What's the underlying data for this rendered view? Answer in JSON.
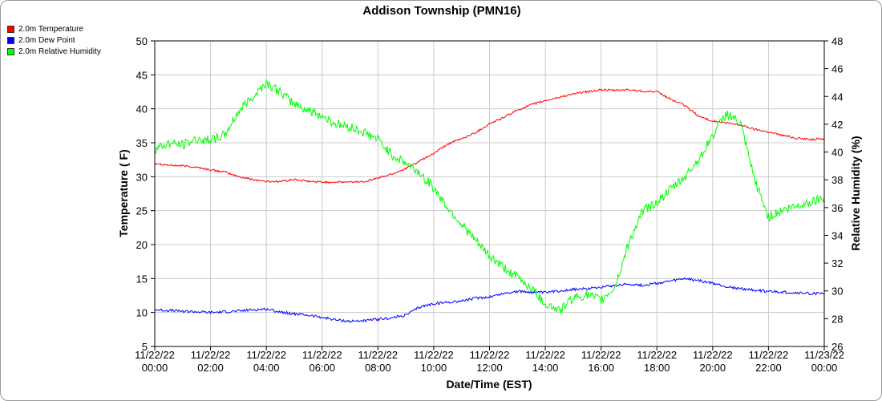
{
  "chart_data": {
    "type": "line",
    "title": "Addison Township (PMN16)",
    "xlabel": "Date/Time (EST)",
    "ylabel": "Temperature ( F)",
    "y2label": "Relative Humidity (%)",
    "ylim": [
      5,
      50
    ],
    "y2lim": [
      26,
      48
    ],
    "yticks": [
      "5",
      "10",
      "15",
      "20",
      "25",
      "30",
      "35",
      "40",
      "45",
      "50"
    ],
    "y2ticks": [
      "26",
      "28",
      "30",
      "32",
      "34",
      "36",
      "38",
      "40",
      "42",
      "44",
      "46",
      "48"
    ],
    "xtick_labels": [
      {
        "date": "11/22/22",
        "time": "00:00"
      },
      {
        "date": "11/22/22",
        "time": "02:00"
      },
      {
        "date": "11/22/22",
        "time": "04:00"
      },
      {
        "date": "11/22/22",
        "time": "06:00"
      },
      {
        "date": "11/22/22",
        "time": "08:00"
      },
      {
        "date": "11/22/22",
        "time": "10:00"
      },
      {
        "date": "11/22/22",
        "time": "12:00"
      },
      {
        "date": "11/22/22",
        "time": "14:00"
      },
      {
        "date": "11/22/22",
        "time": "16:00"
      },
      {
        "date": "11/22/22",
        "time": "18:00"
      },
      {
        "date": "11/22/22",
        "time": "20:00"
      },
      {
        "date": "11/22/22",
        "time": "22:00"
      },
      {
        "date": "11/23/22",
        "time": "00:00"
      }
    ],
    "grid": true,
    "legend_position": "top-left",
    "x": [
      "00:00",
      "00:30",
      "01:00",
      "01:30",
      "02:00",
      "02:30",
      "03:00",
      "03:30",
      "04:00",
      "04:30",
      "05:00",
      "05:30",
      "06:00",
      "06:30",
      "07:00",
      "07:30",
      "08:00",
      "08:30",
      "09:00",
      "09:30",
      "10:00",
      "10:30",
      "11:00",
      "11:30",
      "12:00",
      "12:30",
      "13:00",
      "13:30",
      "14:00",
      "14:30",
      "15:00",
      "15:30",
      "16:00",
      "16:30",
      "17:00",
      "17:30",
      "18:00",
      "18:30",
      "19:00",
      "19:30",
      "20:00",
      "20:30",
      "21:00",
      "21:30",
      "22:00",
      "22:30",
      "23:00",
      "23:30",
      "24:00"
    ],
    "series": [
      {
        "name": "2.0m Temperature",
        "axis": "left",
        "color": "#ff0000",
        "values": [
          32.0,
          31.7,
          31.6,
          31.4,
          31.0,
          30.7,
          30.0,
          29.6,
          29.3,
          29.3,
          29.6,
          29.3,
          29.2,
          29.2,
          29.2,
          29.3,
          29.8,
          30.4,
          31.2,
          32.3,
          33.4,
          34.8,
          35.6,
          36.5,
          37.8,
          38.7,
          39.8,
          40.6,
          41.2,
          41.7,
          42.2,
          42.5,
          42.8,
          42.7,
          42.8,
          42.6,
          42.5,
          41.4,
          40.5,
          38.9,
          38.2,
          37.9,
          37.6,
          37.0,
          36.6,
          36.1,
          35.7,
          35.5,
          35.6
        ]
      },
      {
        "name": "2.0m Dew Point",
        "axis": "left",
        "color": "#0000ff",
        "values": [
          10.4,
          10.3,
          10.2,
          10.1,
          10.0,
          10.1,
          10.2,
          10.4,
          10.5,
          10.1,
          9.8,
          9.6,
          9.3,
          8.9,
          8.7,
          8.8,
          9.0,
          9.2,
          9.6,
          10.8,
          11.3,
          11.5,
          11.7,
          12.1,
          12.3,
          12.8,
          13.1,
          13.0,
          12.9,
          13.2,
          13.4,
          13.5,
          13.8,
          14.0,
          14.2,
          14.0,
          14.3,
          14.6,
          15.0,
          14.7,
          14.3,
          13.8,
          13.5,
          13.3,
          13.1,
          13.0,
          12.9,
          12.8,
          12.8
        ]
      },
      {
        "name": "2.0m Relative Humidity",
        "axis": "right",
        "color": "#00ff00",
        "values": [
          40.2,
          40.6,
          40.5,
          40.9,
          40.9,
          41.2,
          42.9,
          44.0,
          45.0,
          44.3,
          43.5,
          43.0,
          42.6,
          42.0,
          41.8,
          41.4,
          40.9,
          39.8,
          39.2,
          38.5,
          37.4,
          36.0,
          34.8,
          33.6,
          32.5,
          31.7,
          31.0,
          30.2,
          29.1,
          28.6,
          29.5,
          29.7,
          29.3,
          30.3,
          33.5,
          35.8,
          36.4,
          37.3,
          38.2,
          39.5,
          41.2,
          42.8,
          42.0,
          38.0,
          35.3,
          35.8,
          36.1,
          36.4,
          36.8
        ]
      }
    ]
  }
}
